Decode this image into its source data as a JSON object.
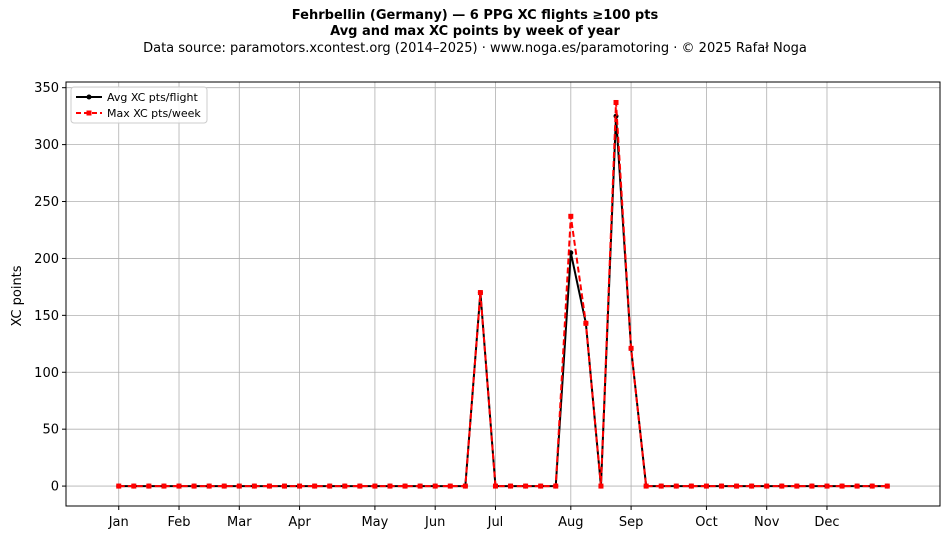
{
  "header": {
    "title": "Fehrbellin (Germany)  —  6 PPG XC flights ≥100 pts",
    "subtitle": "Avg and max XC points by week of year",
    "source": "Data source: paramotors.xcontest.org (2014–2025)  ·  www.noga.es/paramotoring  ·  © 2025 Rafał Noga"
  },
  "chart_data": {
    "type": "line",
    "xlabel": "",
    "ylabel": "XC points",
    "x": [
      1,
      2,
      3,
      4,
      5,
      6,
      7,
      8,
      9,
      10,
      11,
      12,
      13,
      14,
      15,
      16,
      17,
      18,
      19,
      20,
      21,
      22,
      23,
      24,
      25,
      26,
      27,
      28,
      29,
      30,
      31,
      32,
      33,
      34,
      35,
      36,
      37,
      38,
      39,
      40,
      41,
      42,
      43,
      44,
      45,
      46,
      47,
      48,
      49,
      50,
      51,
      52
    ],
    "xlim": [
      -2.5,
      55.5
    ],
    "ylim": [
      -17.5,
      355
    ],
    "yticks": [
      0,
      50,
      100,
      150,
      200,
      250,
      300,
      350
    ],
    "month_ticks": [
      {
        "label": "Jan",
        "week": 1
      },
      {
        "label": "Feb",
        "week": 5
      },
      {
        "label": "Mar",
        "week": 9
      },
      {
        "label": "Apr",
        "week": 13
      },
      {
        "label": "May",
        "week": 18
      },
      {
        "label": "Jun",
        "week": 22
      },
      {
        "label": "Jul",
        "week": 26
      },
      {
        "label": "Aug",
        "week": 31
      },
      {
        "label": "Sep",
        "week": 35
      },
      {
        "label": "Oct",
        "week": 40
      },
      {
        "label": "Nov",
        "week": 44
      },
      {
        "label": "Dec",
        "week": 48
      }
    ],
    "grid": true,
    "legend_position": "top-left",
    "series": [
      {
        "name": "Avg XC pts/flight",
        "color": "#000000",
        "style": "solid",
        "marker": "circle",
        "values": [
          0,
          0,
          0,
          0,
          0,
          0,
          0,
          0,
          0,
          0,
          0,
          0,
          0,
          0,
          0,
          0,
          0,
          0,
          0,
          0,
          0,
          0,
          0,
          0,
          170,
          0,
          0,
          0,
          0,
          0,
          205,
          143,
          0,
          325,
          121,
          0,
          0,
          0,
          0,
          0,
          0,
          0,
          0,
          0,
          0,
          0,
          0,
          0,
          0,
          0,
          0,
          0
        ]
      },
      {
        "name": "Max XC pts/week",
        "color": "#ff0000",
        "style": "dashed",
        "marker": "square",
        "values": [
          0,
          0,
          0,
          0,
          0,
          0,
          0,
          0,
          0,
          0,
          0,
          0,
          0,
          0,
          0,
          0,
          0,
          0,
          0,
          0,
          0,
          0,
          0,
          0,
          170,
          0,
          0,
          0,
          0,
          0,
          237,
          143,
          0,
          337,
          121,
          0,
          0,
          0,
          0,
          0,
          0,
          0,
          0,
          0,
          0,
          0,
          0,
          0,
          0,
          0,
          0,
          0
        ]
      }
    ]
  }
}
